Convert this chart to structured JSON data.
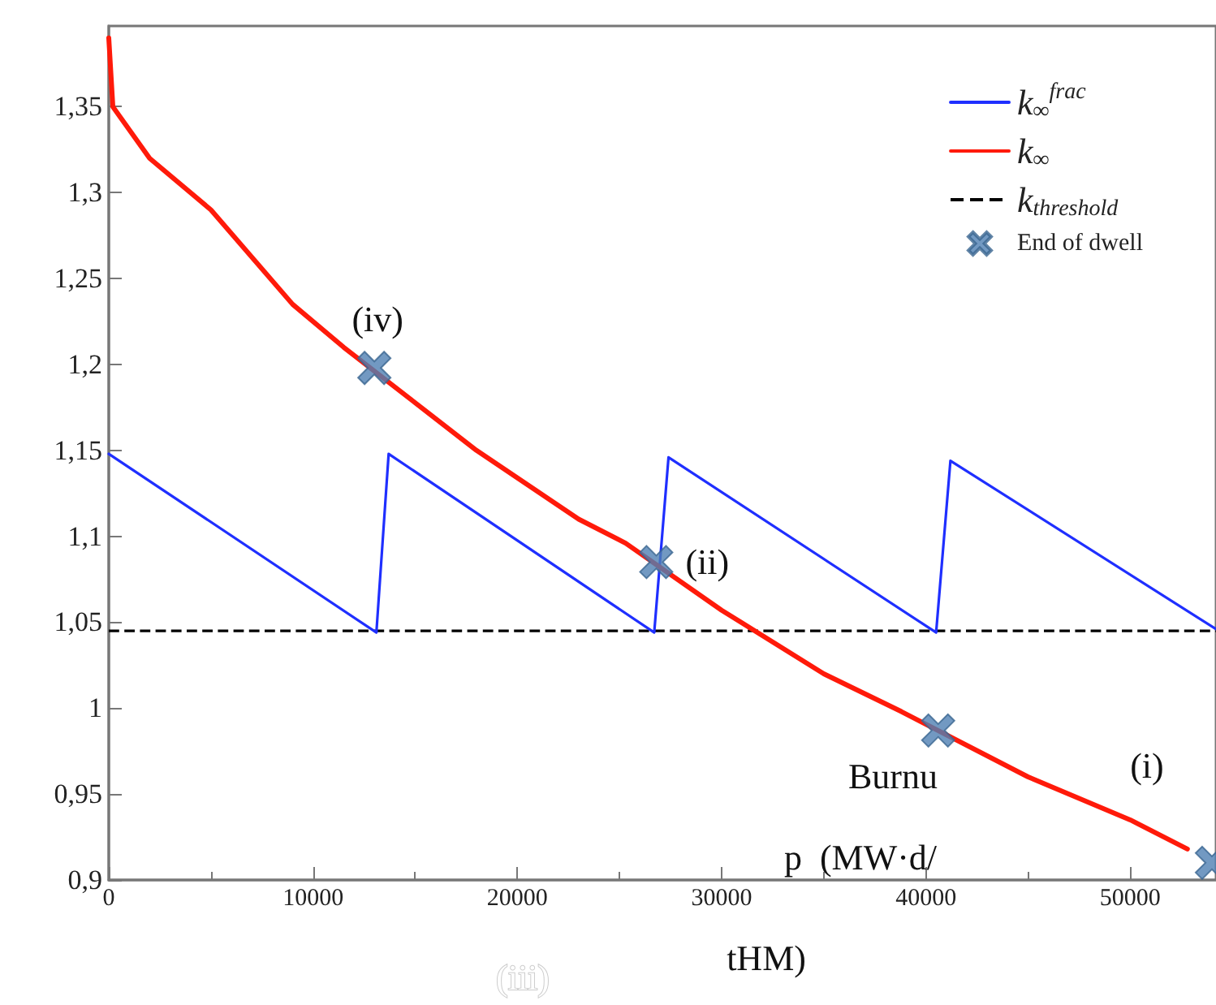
{
  "chart_data": {
    "type": "line",
    "xlim": [
      0,
      54200
    ],
    "xticks": [
      0,
      10000,
      20000,
      30000,
      40000,
      50000
    ],
    "ylim": [
      0.9,
      1.397
    ],
    "yticks": [
      {
        "value": 0.9,
        "label": "0,9"
      },
      {
        "value": 0.95,
        "label": "0,95"
      },
      1,
      {
        "value": 1.05,
        "label": "1,05"
      },
      {
        "value": 1.1,
        "label": "1,1"
      },
      {
        "value": 1.15,
        "label": "1,15"
      },
      {
        "value": 1.2,
        "label": "1,2"
      },
      {
        "value": 1.25,
        "label": "1,25"
      },
      {
        "value": 1.3,
        "label": "1,3"
      },
      {
        "value": 1.35,
        "label": "1,35"
      }
    ],
    "series": [
      {
        "name": "k$_{∞}$$^{frac}$",
        "color": "#1f2fff",
        "x": [
          0,
          13100,
          13700,
          26700,
          27400,
          40500,
          41200,
          54200
        ],
        "values": [
          1.148,
          1.044,
          1.148,
          1.044,
          1.146,
          1.044,
          1.144,
          1.046
        ]
      },
      {
        "name": "k$_{∞}$",
        "color": "#ff1a0a",
        "x": [
          0,
          200,
          2000,
          5000,
          9000,
          11500,
          18000,
          23000,
          25300,
          30000,
          35000,
          38800,
          45000,
          50000,
          52800
        ],
        "values": [
          1.39,
          1.35,
          1.32,
          1.29,
          1.235,
          1.21,
          1.15,
          1.11,
          1.096,
          1.057,
          1.02,
          0.998,
          0.96,
          0.935,
          0.918
        ]
      },
      {
        "name": "End of dwell",
        "type": "scatter",
        "color": "#4f7fb3",
        "marker": "cross",
        "x": [
          13000,
          26800,
          40600,
          54000
        ],
        "values": [
          1.198,
          1.085,
          0.987,
          0.91
        ]
      }
    ],
    "ref_lines": [
      {
        "axis": "y",
        "value": 1.045,
        "label": "k$_{threshold}$",
        "color": "#000000",
        "line_style": "dashed"
      }
    ],
    "annotations": [
      {
        "text": "(iv)",
        "x": 13000,
        "y": 1.198
      },
      {
        "text": "(ii)",
        "x": 26800,
        "y": 1.085
      },
      {
        "text": "(i)",
        "x": 54000,
        "y": 0.91
      },
      "Burnu",
      "p  (MW·d/",
      "tHM)",
      "(iii)"
    ],
    "legend": "top right",
    "grid": false
  }
}
